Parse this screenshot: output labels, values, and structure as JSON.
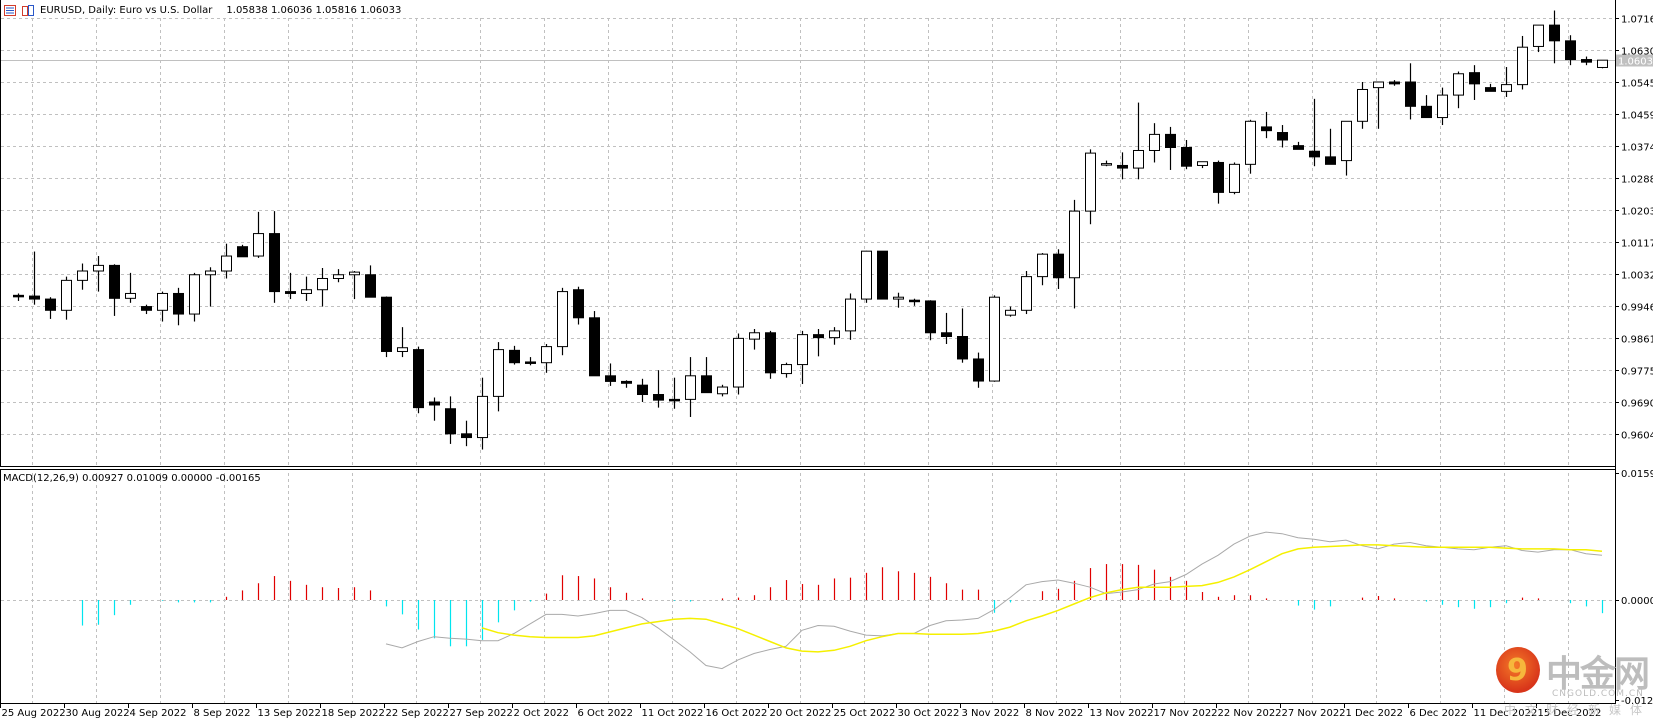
{
  "header": {
    "symbol": "EURUSD",
    "title": "EURUSD, Daily:  Euro vs U.S. Dollar",
    "ohlc": "1.05838 1.06036 1.05816 1.06033",
    "open": 1.05838,
    "high": 1.06036,
    "low": 1.05816,
    "close": 1.06033,
    "icons": [
      "chart-list-icon",
      "chart-window-icon"
    ]
  },
  "macd_label": "MACD(12,26,9) 0.00927 0.01009 0.00000 -0.00165",
  "current_price_label": "1.06033",
  "watermark": {
    "cn": "中金网",
    "en": "CNGOLD.COM.CN",
    "sub": "中文财经新媒体",
    "digit": "9"
  },
  "colors": {
    "grid": "#c0c0c0",
    "axis": "#000000",
    "bull_fill": "#ffffff",
    "bear_fill": "#000000",
    "hist_pos": "#e00000",
    "hist_neg": "#00e5ee",
    "macd_line": "#a9a9a9",
    "signal_line": "#f5f000",
    "price_line": "#c0c0c0",
    "price_tag_bg": "#c0c0c0"
  },
  "chart_data": [
    {
      "type": "candlestick",
      "title": "EURUSD, Daily: Euro vs U.S. Dollar",
      "xlabel": "",
      "ylabel": "",
      "ylim": [
        0.9562,
        1.0766
      ],
      "grid": true,
      "y_ticks": [
        "1.07160",
        "1.06305",
        "1.05450",
        "1.04595",
        "1.03740",
        "1.02885",
        "1.02030",
        "1.01175",
        "1.00320",
        "0.99465",
        "0.98610",
        "0.97755",
        "0.96900",
        "0.96045"
      ],
      "x_ticks": [
        "25 Aug 2022",
        "30 Aug 2022",
        "4 Sep 2022",
        "8 Sep 2022",
        "13 Sep 2022",
        "18 Sep 2022",
        "22 Sep 2022",
        "27 Sep 2022",
        "2 Oct 2022",
        "6 Oct 2022",
        "11 Oct 2022",
        "16 Oct 2022",
        "20 Oct 2022",
        "25 Oct 2022",
        "30 Oct 2022",
        "3 Nov 2022",
        "8 Nov 2022",
        "13 Nov 2022",
        "17 Nov 2022",
        "22 Nov 2022",
        "27 Nov 2022",
        "1 Dec 2022",
        "6 Dec 2022",
        "11 Dec 2022",
        "15 Dec 2022"
      ],
      "ohlc": [
        [
          0.9975,
          0.998,
          0.996,
          0.9973
        ],
        [
          0.9973,
          1.0092,
          0.995,
          0.9965
        ],
        [
          0.9965,
          0.997,
          0.9912,
          0.9935
        ],
        [
          0.9935,
          1.0025,
          0.991,
          1.0015
        ],
        [
          1.0015,
          1.006,
          0.999,
          1.004
        ],
        [
          1.004,
          1.008,
          0.9985,
          1.0055
        ],
        [
          1.0055,
          1.0058,
          0.992,
          0.9967
        ],
        [
          0.9967,
          1.0035,
          0.9955,
          0.998
        ],
        [
          0.9945,
          0.995,
          0.9925,
          0.9935
        ],
        [
          0.9935,
          0.9985,
          0.9905,
          0.998
        ],
        [
          0.998,
          0.9995,
          0.9895,
          0.9925
        ],
        [
          0.9925,
          1.0035,
          0.9905,
          1.003
        ],
        [
          1.003,
          1.005,
          0.9945,
          1.004
        ],
        [
          1.004,
          1.0113,
          1.002,
          1.008
        ],
        [
          1.0105,
          1.011,
          1.0082,
          1.0078
        ],
        [
          1.008,
          1.0198,
          1.0075,
          1.014
        ],
        [
          1.014,
          1.02,
          0.9955,
          0.9985
        ],
        [
          0.9985,
          1.0035,
          0.9965,
          0.998
        ],
        [
          0.998,
          1.0025,
          0.996,
          0.999
        ],
        [
          0.999,
          1.0048,
          0.9945,
          1.002
        ],
        [
          1.002,
          1.0045,
          1.001,
          1.003
        ],
        [
          1.003,
          1.004,
          0.9965,
          1.0037
        ],
        [
          1.003,
          1.0055,
          0.998,
          0.997
        ],
        [
          0.997,
          0.9972,
          0.981,
          0.9825
        ],
        [
          0.9825,
          0.989,
          0.981,
          0.9835
        ],
        [
          0.983,
          0.9838,
          0.966,
          0.9675
        ],
        [
          0.969,
          0.9702,
          0.964,
          0.9682
        ],
        [
          0.9672,
          0.9705,
          0.9578,
          0.9605
        ],
        [
          0.9605,
          0.964,
          0.9572,
          0.9595
        ],
        [
          0.9595,
          0.9755,
          0.9563,
          0.9705
        ],
        [
          0.9705,
          0.985,
          0.9665,
          0.983
        ],
        [
          0.9828,
          0.984,
          0.979,
          0.9795
        ],
        [
          0.9797,
          0.981,
          0.9788,
          0.9793
        ],
        [
          0.9795,
          0.9845,
          0.9768,
          0.9838
        ],
        [
          0.9838,
          0.9995,
          0.9815,
          0.9985
        ],
        [
          0.999,
          0.9998,
          0.9897,
          0.9915
        ],
        [
          0.9915,
          0.9933,
          0.979,
          0.976
        ],
        [
          0.976,
          0.9793,
          0.9733,
          0.9745
        ],
        [
          0.9745,
          0.9748,
          0.9728,
          0.974
        ],
        [
          0.9735,
          0.9752,
          0.969,
          0.971
        ],
        [
          0.971,
          0.9775,
          0.9675,
          0.9695
        ],
        [
          0.9697,
          0.9755,
          0.9672,
          0.9695
        ],
        [
          0.9697,
          0.981,
          0.965,
          0.976
        ],
        [
          0.976,
          0.981,
          0.9735,
          0.9715
        ],
        [
          0.9712,
          0.9736,
          0.9705,
          0.973
        ],
        [
          0.973,
          0.9873,
          0.971,
          0.986
        ],
        [
          0.9858,
          0.9885,
          0.983,
          0.9875
        ],
        [
          0.9875,
          0.988,
          0.9752,
          0.9768
        ],
        [
          0.9766,
          0.9795,
          0.9755,
          0.979
        ],
        [
          0.979,
          0.988,
          0.9738,
          0.987
        ],
        [
          0.987,
          0.9885,
          0.9812,
          0.9862
        ],
        [
          0.9862,
          0.989,
          0.9843,
          0.988
        ],
        [
          0.988,
          0.998,
          0.9856,
          0.9965
        ],
        [
          0.9965,
          1.0094,
          0.9955,
          1.0093
        ],
        [
          1.0093,
          1.0093,
          0.9975,
          0.9965
        ],
        [
          0.9965,
          0.9982,
          0.9942,
          0.997
        ],
        [
          0.9962,
          0.9966,
          0.9947,
          0.996
        ],
        [
          0.996,
          0.9962,
          0.9855,
          0.9875
        ],
        [
          0.9875,
          0.9928,
          0.9845,
          0.9865
        ],
        [
          0.9865,
          0.994,
          0.9795,
          0.9805
        ],
        [
          0.9805,
          0.9822,
          0.9728,
          0.9746
        ],
        [
          0.9746,
          0.9975,
          0.9744,
          0.997
        ],
        [
          0.9922,
          0.9945,
          0.9918,
          0.9935
        ],
        [
          0.9935,
          1.004,
          0.9925,
          1.0025
        ],
        [
          1.0025,
          1.0088,
          1.0002,
          1.0085
        ],
        [
          1.0085,
          1.0098,
          0.9992,
          1.0022
        ],
        [
          1.0022,
          1.023,
          0.994,
          1.02
        ],
        [
          1.02,
          1.0365,
          1.0165,
          1.0355
        ],
        [
          1.0325,
          1.0335,
          1.032,
          1.0327
        ],
        [
          1.0322,
          1.0357,
          1.0285,
          1.0315
        ],
        [
          1.0315,
          1.049,
          1.0285,
          1.0362
        ],
        [
          1.0362,
          1.0435,
          1.033,
          1.0405
        ],
        [
          1.0405,
          1.0425,
          1.031,
          1.037
        ],
        [
          1.037,
          1.039,
          1.0312,
          1.032
        ],
        [
          1.0322,
          1.033,
          1.0315,
          1.0332
        ],
        [
          1.033,
          1.0335,
          1.022,
          1.025
        ],
        [
          1.025,
          1.033,
          1.0245,
          1.0325
        ],
        [
          1.0325,
          1.0444,
          1.03,
          1.044
        ],
        [
          1.0425,
          1.0465,
          1.0395,
          1.0415
        ],
        [
          1.041,
          1.043,
          1.037,
          1.039
        ],
        [
          1.0375,
          1.0385,
          1.0365,
          1.0365
        ],
        [
          1.036,
          1.05,
          1.032,
          1.0345
        ],
        [
          1.0345,
          1.042,
          1.0325,
          1.0325
        ],
        [
          1.0335,
          1.04,
          1.0295,
          1.044
        ],
        [
          1.044,
          1.0545,
          1.042,
          1.0525
        ],
        [
          1.053,
          1.0545,
          1.042,
          1.0545
        ],
        [
          1.0545,
          1.055,
          1.0535,
          1.054
        ],
        [
          1.0545,
          1.0595,
          1.0445,
          1.048
        ],
        [
          1.048,
          1.051,
          1.0455,
          1.045
        ],
        [
          1.045,
          1.053,
          1.043,
          1.051
        ],
        [
          1.051,
          1.0573,
          1.0475,
          1.0567
        ],
        [
          1.057,
          1.059,
          1.0497,
          1.054
        ],
        [
          1.053,
          1.054,
          1.0522,
          1.052
        ],
        [
          1.052,
          1.0585,
          1.0505,
          1.0538
        ],
        [
          1.0538,
          1.0668,
          1.0525,
          1.0638
        ],
        [
          1.064,
          1.0697,
          1.0625,
          1.0697
        ],
        [
          1.0697,
          1.0736,
          1.0595,
          1.0655
        ],
        [
          1.0655,
          1.067,
          1.059,
          1.0605
        ],
        [
          1.0605,
          1.0613,
          1.059,
          1.0598
        ],
        [
          1.05838,
          1.06036,
          1.05816,
          1.06033
        ]
      ]
    },
    {
      "type": "line",
      "title": "MACD(12,26,9)",
      "values_label": [
        "0.00927",
        "0.01009",
        "0.00000",
        "-0.00165"
      ],
      "ylim": [
        -0.0125,
        0.01591
      ],
      "y_ticks": [
        "0.01591",
        "0.00000",
        "-0.01250"
      ],
      "series": [
        {
          "name": "Histogram",
          "values": [
            -0.0032,
            -0.0031,
            -0.0019,
            -0.0006,
            0,
            -0.0001,
            -0.0003,
            -0.0003,
            -0.0003,
            0.0004,
            0.0012,
            0.0021,
            0.003,
            0.0024,
            0.0019,
            0.0016,
            0.0015,
            0.0016,
            0.0012,
            -0.0008,
            -0.0018,
            -0.0037,
            -0.0048,
            -0.0058,
            -0.0058,
            -0.005,
            -0.0028,
            -0.0013,
            -0.0002,
            0.0008,
            0.0031,
            0.003,
            0.0027,
            0.0016,
            0.0009,
            0.0002,
            0,
            -0.0001,
            -0.0002,
            0,
            0.0002,
            0.0003,
            0.0006,
            0.0016,
            0.0025,
            0.002,
            0.0019,
            0.0027,
            0.0028,
            0.0034,
            0.0041,
            0.0036,
            0.0034,
            0.0029,
            0.0021,
            0.0013,
            0.0013,
            -0.0016,
            -0.0003,
            0,
            0.0011,
            0.0014,
            0.0024,
            0.004,
            0.0045,
            0.0045,
            0.0044,
            0.0038,
            0.0029,
            0.0024,
            0.001,
            0.0004,
            0.0006,
            0.0006,
            0.0002,
            0,
            -0.0007,
            -0.0012,
            -0.0008,
            0,
            0.0003,
            0.0005,
            0.0002,
            0,
            -0.0002,
            -0.0006,
            -0.0009,
            -0.0011,
            -0.0009,
            -0.0004,
            0.0003,
            0.0002,
            0,
            -0.0004,
            -0.0008,
            -0.00165
          ]
        },
        {
          "name": "MACD",
          "values": [
            -0.0055,
            -0.006,
            -0.0052,
            -0.0046,
            -0.0048,
            -0.0049,
            -0.0051,
            -0.0051,
            -0.0042,
            -0.003,
            -0.0018,
            -0.0018,
            -0.002,
            -0.0017,
            -0.0013,
            -0.0013,
            -0.0022,
            -0.0035,
            -0.005,
            -0.0065,
            -0.0082,
            -0.0086,
            -0.0075,
            -0.0067,
            -0.0062,
            -0.0058,
            -0.0038,
            -0.0032,
            -0.0033,
            -0.0039,
            -0.0044,
            -0.0045,
            -0.0042,
            -0.0042,
            -0.0032,
            -0.0026,
            -0.0025,
            -0.0023,
            -0.0012,
            0.0003,
            0.0019,
            0.0023,
            0.0025,
            0.0021,
            0.0016,
            0.0008,
            0.001,
            0.0013,
            0.002,
            0.0023,
            0.0032,
            0.0045,
            0.0056,
            0.007,
            0.008,
            0.0085,
            0.0083,
            0.0078,
            0.0076,
            0.0073,
            0.0075,
            0.0068,
            0.0064,
            0.007,
            0.0072,
            0.0068,
            0.0066,
            0.0064,
            0.0063,
            0.0066,
            0.0068,
            0.0062,
            0.006,
            0.0063,
            0.0063,
            0.0058,
            0.0056
          ]
        },
        {
          "name": "Signal",
          "values": [
            -0.0035,
            -0.0041,
            -0.0044,
            -0.0046,
            -0.0047,
            -0.0047,
            -0.0047,
            -0.0045,
            -0.004,
            -0.0035,
            -0.003,
            -0.0027,
            -0.0024,
            -0.0023,
            -0.0024,
            -0.003,
            -0.0036,
            -0.0044,
            -0.0052,
            -0.006,
            -0.0064,
            -0.0065,
            -0.0063,
            -0.0058,
            -0.0051,
            -0.0046,
            -0.0042,
            -0.0042,
            -0.0043,
            -0.0043,
            -0.0043,
            -0.0042,
            -0.0039,
            -0.0034,
            -0.0026,
            -0.002,
            -0.0013,
            -0.0005,
            0.0003,
            0.0009,
            0.0013,
            0.0016,
            0.0016,
            0.0016,
            0.0017,
            0.0018,
            0.0022,
            0.0029,
            0.0038,
            0.0048,
            0.0058,
            0.0064,
            0.0066,
            0.0067,
            0.0068,
            0.0069,
            0.0069,
            0.0068,
            0.0067,
            0.0066,
            0.0066,
            0.0066,
            0.0066,
            0.0066,
            0.0065,
            0.0064,
            0.0064,
            0.0064,
            0.0063,
            0.0063,
            0.0061
          ]
        }
      ]
    }
  ]
}
